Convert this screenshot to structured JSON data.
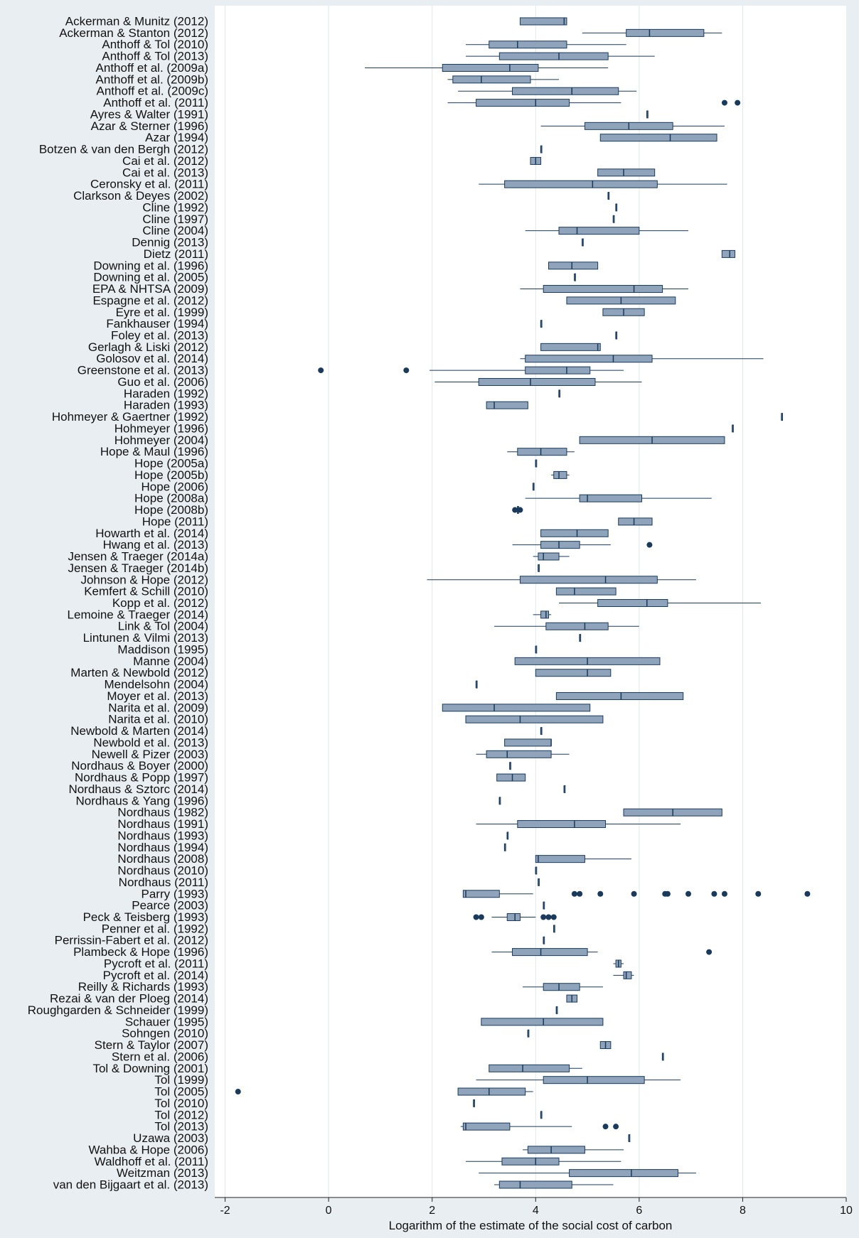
{
  "chart_data": {
    "type": "boxplot",
    "orientation": "horizontal",
    "xlabel": "Logarithm of the estimate of the social cost of carbon",
    "xlim": [
      -2.2,
      10
    ],
    "xticks": [
      -2,
      0,
      2,
      4,
      6,
      8,
      10
    ],
    "tick_labels": [
      "-2",
      "0",
      "2",
      "4",
      "6",
      "8",
      "10"
    ],
    "grid": "vertical",
    "colors": {
      "box_fill": "#8fa4bb",
      "line": "#1a3a5c",
      "outlier": "#1a3a5c",
      "plot_bg": "#ffffff",
      "outer_bg": "#e9eef2",
      "grid": "#dfe6ec"
    },
    "studies": [
      {
        "label": "Ackerman & Munitz (2012)",
        "wl": 3.7,
        "q1": 3.7,
        "med": 4.55,
        "q3": 4.6,
        "wh": 4.6,
        "out": []
      },
      {
        "label": "Ackerman & Stanton (2012)",
        "wl": 4.9,
        "q1": 5.75,
        "med": 6.2,
        "q3": 7.25,
        "wh": 7.6,
        "out": []
      },
      {
        "label": "Anthoff & Tol (2010)",
        "wl": 2.65,
        "q1": 3.1,
        "med": 3.65,
        "q3": 4.6,
        "wh": 5.75,
        "out": []
      },
      {
        "label": "Anthoff & Tol (2013)",
        "wl": 2.65,
        "q1": 3.3,
        "med": 4.45,
        "q3": 5.4,
        "wh": 6.3,
        "out": []
      },
      {
        "label": "Anthoff et al. (2009a)",
        "wl": 0.7,
        "q1": 2.2,
        "med": 3.5,
        "q3": 4.05,
        "wh": 5.4,
        "out": []
      },
      {
        "label": "Anthoff et al. (2009b)",
        "wl": 2.3,
        "q1": 2.4,
        "med": 2.95,
        "q3": 3.9,
        "wh": 4.45,
        "out": []
      },
      {
        "label": "Anthoff et al. (2009c)",
        "wl": 2.5,
        "q1": 3.55,
        "med": 4.7,
        "q3": 5.6,
        "wh": 5.95,
        "out": []
      },
      {
        "label": "Anthoff et al. (2011)",
        "wl": 2.3,
        "q1": 2.85,
        "med": 4.0,
        "q3": 4.65,
        "wh": 5.65,
        "out": [
          7.65,
          7.9
        ]
      },
      {
        "label": "Ayres & Walter (1991)",
        "wl": 6.15,
        "q1": 6.15,
        "med": 6.15,
        "q3": 6.15,
        "wh": 6.15,
        "out": []
      },
      {
        "label": "Azar & Sterner (1996)",
        "wl": 4.1,
        "q1": 4.95,
        "med": 5.8,
        "q3": 6.65,
        "wh": 7.65,
        "out": []
      },
      {
        "label": "Azar (1994)",
        "wl": 5.25,
        "q1": 5.25,
        "med": 6.6,
        "q3": 7.5,
        "wh": 7.5,
        "out": []
      },
      {
        "label": "Botzen & van den Bergh (2012)",
        "wl": 4.1,
        "q1": 4.1,
        "med": 4.1,
        "q3": 4.1,
        "wh": 4.1,
        "out": []
      },
      {
        "label": "Cai et al. (2012)",
        "wl": 3.9,
        "q1": 3.9,
        "med": 4.0,
        "q3": 4.1,
        "wh": 4.1,
        "out": []
      },
      {
        "label": "Cai et al. (2013)",
        "wl": 5.2,
        "q1": 5.2,
        "med": 5.7,
        "q3": 6.3,
        "wh": 6.3,
        "out": []
      },
      {
        "label": "Ceronsky et al. (2011)",
        "wl": 2.9,
        "q1": 3.4,
        "med": 5.1,
        "q3": 6.35,
        "wh": 7.7,
        "out": []
      },
      {
        "label": "Clarkson & Deyes (2002)",
        "wl": 5.4,
        "q1": 5.4,
        "med": 5.4,
        "q3": 5.4,
        "wh": 5.4,
        "out": []
      },
      {
        "label": "Cline (1992)",
        "wl": 5.55,
        "q1": 5.55,
        "med": 5.55,
        "q3": 5.55,
        "wh": 5.55,
        "out": []
      },
      {
        "label": "Cline (1997)",
        "wl": 5.5,
        "q1": 5.5,
        "med": 5.5,
        "q3": 5.5,
        "wh": 5.5,
        "out": []
      },
      {
        "label": "Cline (2004)",
        "wl": 3.8,
        "q1": 4.45,
        "med": 4.8,
        "q3": 6.0,
        "wh": 6.95,
        "out": []
      },
      {
        "label": "Dennig (2013)",
        "wl": 4.9,
        "q1": 4.9,
        "med": 4.9,
        "q3": 4.9,
        "wh": 4.9,
        "out": []
      },
      {
        "label": "Dietz (2011)",
        "wl": 7.6,
        "q1": 7.6,
        "med": 7.75,
        "q3": 7.85,
        "wh": 7.85,
        "out": []
      },
      {
        "label": "Downing et al. (1996)",
        "wl": 4.25,
        "q1": 4.25,
        "med": 4.7,
        "q3": 5.2,
        "wh": 5.2,
        "out": []
      },
      {
        "label": "Downing et al. (2005)",
        "wl": 4.75,
        "q1": 4.75,
        "med": 4.75,
        "q3": 4.75,
        "wh": 4.75,
        "out": []
      },
      {
        "label": "EPA & NHTSA (2009)",
        "wl": 3.7,
        "q1": 4.15,
        "med": 5.9,
        "q3": 6.45,
        "wh": 6.95,
        "out": []
      },
      {
        "label": "Espagne et al. (2012)",
        "wl": 4.6,
        "q1": 4.6,
        "med": 5.65,
        "q3": 6.7,
        "wh": 6.7,
        "out": []
      },
      {
        "label": "Eyre et al. (1999)",
        "wl": 5.3,
        "q1": 5.3,
        "med": 5.7,
        "q3": 6.1,
        "wh": 6.1,
        "out": []
      },
      {
        "label": "Fankhauser (1994)",
        "wl": 4.1,
        "q1": 4.1,
        "med": 4.1,
        "q3": 4.1,
        "wh": 4.1,
        "out": []
      },
      {
        "label": "Foley et al. (2013)",
        "wl": 5.55,
        "q1": 5.55,
        "med": 5.55,
        "q3": 5.55,
        "wh": 5.55,
        "out": []
      },
      {
        "label": "Gerlagh & Liski (2012)",
        "wl": 4.1,
        "q1": 4.1,
        "med": 5.2,
        "q3": 5.25,
        "wh": 5.25,
        "out": []
      },
      {
        "label": "Golosov et al. (2014)",
        "wl": 3.7,
        "q1": 3.8,
        "med": 5.5,
        "q3": 6.25,
        "wh": 8.4,
        "out": []
      },
      {
        "label": "Greenstone et al. (2013)",
        "wl": 1.95,
        "q1": 3.8,
        "med": 4.6,
        "q3": 5.05,
        "wh": 5.7,
        "out": [
          -0.15,
          1.5
        ]
      },
      {
        "label": "Guo et al. (2006)",
        "wl": 2.05,
        "q1": 2.9,
        "med": 3.9,
        "q3": 5.15,
        "wh": 6.05,
        "out": []
      },
      {
        "label": "Haraden (1992)",
        "wl": 4.45,
        "q1": 4.45,
        "med": 4.45,
        "q3": 4.45,
        "wh": 4.45,
        "out": []
      },
      {
        "label": "Haraden (1993)",
        "wl": 3.05,
        "q1": 3.05,
        "med": 3.2,
        "q3": 3.85,
        "wh": 3.85,
        "out": []
      },
      {
        "label": "Hohmeyer & Gaertner (1992)",
        "wl": 8.75,
        "q1": 8.75,
        "med": 8.75,
        "q3": 8.75,
        "wh": 8.75,
        "out": []
      },
      {
        "label": "Hohmeyer (1996)",
        "wl": 7.8,
        "q1": 7.8,
        "med": 7.8,
        "q3": 7.8,
        "wh": 7.8,
        "out": []
      },
      {
        "label": "Hohmeyer (2004)",
        "wl": 4.85,
        "q1": 4.85,
        "med": 6.25,
        "q3": 7.65,
        "wh": 7.65,
        "out": []
      },
      {
        "label": "Hope & Maul (1996)",
        "wl": 3.45,
        "q1": 3.65,
        "med": 4.1,
        "q3": 4.6,
        "wh": 4.75,
        "out": []
      },
      {
        "label": "Hope (2005a)",
        "wl": 4.0,
        "q1": 4.0,
        "med": 4.0,
        "q3": 4.0,
        "wh": 4.0,
        "out": []
      },
      {
        "label": "Hope (2005b)",
        "wl": 4.3,
        "q1": 4.35,
        "med": 4.45,
        "q3": 4.6,
        "wh": 4.65,
        "out": []
      },
      {
        "label": "Hope (2006)",
        "wl": 3.95,
        "q1": 3.95,
        "med": 3.95,
        "q3": 3.95,
        "wh": 3.95,
        "out": []
      },
      {
        "label": "Hope (2008a)",
        "wl": 3.8,
        "q1": 4.85,
        "med": 5.0,
        "q3": 6.05,
        "wh": 7.4,
        "out": []
      },
      {
        "label": "Hope (2008b)",
        "wl": 3.65,
        "q1": 3.65,
        "med": 3.65,
        "q3": 3.65,
        "wh": 3.65,
        "out": [
          3.6,
          3.7
        ]
      },
      {
        "label": "Hope (2011)",
        "wl": 5.6,
        "q1": 5.6,
        "med": 5.9,
        "q3": 6.25,
        "wh": 6.25,
        "out": []
      },
      {
        "label": "Howarth et al. (2014)",
        "wl": 4.1,
        "q1": 4.1,
        "med": 4.8,
        "q3": 5.4,
        "wh": 5.4,
        "out": []
      },
      {
        "label": "Hwang et al. (2013)",
        "wl": 3.55,
        "q1": 4.1,
        "med": 4.45,
        "q3": 4.85,
        "wh": 5.45,
        "out": [
          6.2
        ]
      },
      {
        "label": "Jensen & Traeger (2014a)",
        "wl": 3.95,
        "q1": 4.05,
        "med": 4.15,
        "q3": 4.45,
        "wh": 4.65,
        "out": []
      },
      {
        "label": "Jensen & Traeger (2014b)",
        "wl": 4.05,
        "q1": 4.05,
        "med": 4.05,
        "q3": 4.05,
        "wh": 4.05,
        "out": []
      },
      {
        "label": "Johnson & Hope (2012)",
        "wl": 1.9,
        "q1": 3.7,
        "med": 5.35,
        "q3": 6.35,
        "wh": 7.1,
        "out": []
      },
      {
        "label": "Kemfert & Schill (2010)",
        "wl": 4.4,
        "q1": 4.4,
        "med": 4.75,
        "q3": 5.55,
        "wh": 5.55,
        "out": []
      },
      {
        "label": "Kopp et al. (2012)",
        "wl": 4.45,
        "q1": 5.2,
        "med": 6.15,
        "q3": 6.55,
        "wh": 8.35,
        "out": []
      },
      {
        "label": "Lemoine & Traeger (2014)",
        "wl": 3.95,
        "q1": 4.1,
        "med": 4.2,
        "q3": 4.25,
        "wh": 4.3,
        "out": []
      },
      {
        "label": "Link & Tol (2004)",
        "wl": 3.2,
        "q1": 4.2,
        "med": 4.95,
        "q3": 5.4,
        "wh": 6.0,
        "out": []
      },
      {
        "label": "Lintunen & Vilmi (2013)",
        "wl": 4.85,
        "q1": 4.85,
        "med": 4.85,
        "q3": 4.85,
        "wh": 4.85,
        "out": []
      },
      {
        "label": "Maddison (1995)",
        "wl": 4.0,
        "q1": 4.0,
        "med": 4.0,
        "q3": 4.0,
        "wh": 4.0,
        "out": []
      },
      {
        "label": "Manne (2004)",
        "wl": 3.6,
        "q1": 3.6,
        "med": 5.0,
        "q3": 6.4,
        "wh": 6.4,
        "out": []
      },
      {
        "label": "Marten & Newbold (2012)",
        "wl": 4.0,
        "q1": 4.0,
        "med": 5.0,
        "q3": 5.45,
        "wh": 5.45,
        "out": []
      },
      {
        "label": "Mendelsohn (2004)",
        "wl": 2.85,
        "q1": 2.85,
        "med": 2.85,
        "q3": 2.85,
        "wh": 2.85,
        "out": []
      },
      {
        "label": "Moyer et al. (2013)",
        "wl": 4.4,
        "q1": 4.4,
        "med": 5.65,
        "q3": 6.85,
        "wh": 6.85,
        "out": []
      },
      {
        "label": "Narita et al. (2009)",
        "wl": 2.2,
        "q1": 2.2,
        "med": 3.2,
        "q3": 5.05,
        "wh": 5.05,
        "out": []
      },
      {
        "label": "Narita et al. (2010)",
        "wl": 2.65,
        "q1": 2.65,
        "med": 3.7,
        "q3": 5.3,
        "wh": 5.3,
        "out": []
      },
      {
        "label": "Newbold & Marten (2014)",
        "wl": 4.1,
        "q1": 4.1,
        "med": 4.1,
        "q3": 4.1,
        "wh": 4.1,
        "out": []
      },
      {
        "label": "Newbold et al. (2013)",
        "wl": 3.4,
        "q1": 3.4,
        "med": 4.3,
        "q3": 4.3,
        "wh": 4.3,
        "out": []
      },
      {
        "label": "Newell & Pizer (2003)",
        "wl": 2.85,
        "q1": 3.05,
        "med": 3.45,
        "q3": 4.3,
        "wh": 4.65,
        "out": []
      },
      {
        "label": "Nordhaus & Boyer (2000)",
        "wl": 3.5,
        "q1": 3.5,
        "med": 3.5,
        "q3": 3.5,
        "wh": 3.5,
        "out": []
      },
      {
        "label": "Nordhaus & Popp (1997)",
        "wl": 3.25,
        "q1": 3.25,
        "med": 3.55,
        "q3": 3.8,
        "wh": 3.8,
        "out": []
      },
      {
        "label": "Nordhaus & Sztorc (2014)",
        "wl": 4.55,
        "q1": 4.55,
        "med": 4.55,
        "q3": 4.55,
        "wh": 4.55,
        "out": []
      },
      {
        "label": "Nordhaus & Yang (1996)",
        "wl": 3.3,
        "q1": 3.3,
        "med": 3.3,
        "q3": 3.3,
        "wh": 3.3,
        "out": []
      },
      {
        "label": "Nordhaus (1982)",
        "wl": 5.7,
        "q1": 5.7,
        "med": 6.65,
        "q3": 7.6,
        "wh": 7.6,
        "out": []
      },
      {
        "label": "Nordhaus (1991)",
        "wl": 2.85,
        "q1": 3.65,
        "med": 4.75,
        "q3": 5.35,
        "wh": 6.8,
        "out": []
      },
      {
        "label": "Nordhaus (1993)",
        "wl": 3.45,
        "q1": 3.45,
        "med": 3.45,
        "q3": 3.45,
        "wh": 3.45,
        "out": []
      },
      {
        "label": "Nordhaus (1994)",
        "wl": 3.4,
        "q1": 3.4,
        "med": 3.4,
        "q3": 3.4,
        "wh": 3.4,
        "out": []
      },
      {
        "label": "Nordhaus (2008)",
        "wl": 4.0,
        "q1": 4.0,
        "med": 4.05,
        "q3": 4.95,
        "wh": 5.85,
        "out": []
      },
      {
        "label": "Nordhaus (2010)",
        "wl": 4.0,
        "q1": 4.0,
        "med": 4.0,
        "q3": 4.0,
        "wh": 4.0,
        "out": []
      },
      {
        "label": "Nordhaus (2011)",
        "wl": 4.05,
        "q1": 4.05,
        "med": 4.05,
        "q3": 4.05,
        "wh": 4.05,
        "out": []
      },
      {
        "label": "Parry (1993)",
        "wl": 2.6,
        "q1": 2.6,
        "med": 2.65,
        "q3": 3.3,
        "wh": 3.95,
        "out": [
          4.75,
          4.85,
          5.25,
          5.9,
          6.5,
          6.55,
          6.95,
          7.45,
          7.65,
          8.3,
          9.25
        ]
      },
      {
        "label": "Pearce (2003)",
        "wl": 4.15,
        "q1": 4.15,
        "med": 4.15,
        "q3": 4.15,
        "wh": 4.15,
        "out": []
      },
      {
        "label": "Peck & Teisberg (1993)",
        "wl": 3.15,
        "q1": 3.45,
        "med": 3.6,
        "q3": 3.7,
        "wh": 4.0,
        "out": [
          2.85,
          2.95,
          4.15,
          4.25,
          4.35
        ]
      },
      {
        "label": "Penner et al. (1992)",
        "wl": 4.35,
        "q1": 4.35,
        "med": 4.35,
        "q3": 4.35,
        "wh": 4.35,
        "out": []
      },
      {
        "label": "Perrissin-Fabert et al. (2012)",
        "wl": 4.15,
        "q1": 4.15,
        "med": 4.15,
        "q3": 4.15,
        "wh": 4.15,
        "out": []
      },
      {
        "label": "Plambeck & Hope (1996)",
        "wl": 3.15,
        "q1": 3.55,
        "med": 4.1,
        "q3": 5.0,
        "wh": 5.2,
        "out": [
          7.35
        ]
      },
      {
        "label": "Pycroft et al. (2011)",
        "wl": 5.5,
        "q1": 5.55,
        "med": 5.6,
        "q3": 5.65,
        "wh": 5.7,
        "out": []
      },
      {
        "label": "Pycroft et al. (2014)",
        "wl": 5.5,
        "q1": 5.7,
        "med": 5.75,
        "q3": 5.85,
        "wh": 5.9,
        "out": []
      },
      {
        "label": "Reilly & Richards (1993)",
        "wl": 3.75,
        "q1": 4.15,
        "med": 4.45,
        "q3": 4.85,
        "wh": 5.3,
        "out": []
      },
      {
        "label": "Rezai & van der Ploeg (2014)",
        "wl": 4.6,
        "q1": 4.6,
        "med": 4.7,
        "q3": 4.8,
        "wh": 4.8,
        "out": []
      },
      {
        "label": "Roughgarden & Schneider (1999)",
        "wl": 4.4,
        "q1": 4.4,
        "med": 4.4,
        "q3": 4.4,
        "wh": 4.4,
        "out": []
      },
      {
        "label": "Schauer (1995)",
        "wl": 2.95,
        "q1": 2.95,
        "med": 4.15,
        "q3": 5.3,
        "wh": 5.3,
        "out": []
      },
      {
        "label": "Sohngen (2010)",
        "wl": 3.85,
        "q1": 3.85,
        "med": 3.85,
        "q3": 3.85,
        "wh": 3.85,
        "out": []
      },
      {
        "label": "Stern & Taylor (2007)",
        "wl": 5.25,
        "q1": 5.25,
        "med": 5.35,
        "q3": 5.45,
        "wh": 5.45,
        "out": []
      },
      {
        "label": "Stern et al. (2006)",
        "wl": 6.45,
        "q1": 6.45,
        "med": 6.45,
        "q3": 6.45,
        "wh": 6.45,
        "out": []
      },
      {
        "label": "Tol & Downing (2001)",
        "wl": 3.1,
        "q1": 3.1,
        "med": 3.75,
        "q3": 4.65,
        "wh": 4.9,
        "out": []
      },
      {
        "label": "Tol (1999)",
        "wl": 2.85,
        "q1": 4.15,
        "med": 5.0,
        "q3": 6.1,
        "wh": 6.8,
        "out": []
      },
      {
        "label": "Tol (2005)",
        "wl": 2.5,
        "q1": 2.5,
        "med": 3.1,
        "q3": 3.8,
        "wh": 3.95,
        "out": [
          -1.75
        ]
      },
      {
        "label": "Tol (2010)",
        "wl": 2.8,
        "q1": 2.8,
        "med": 2.8,
        "q3": 2.8,
        "wh": 2.8,
        "out": []
      },
      {
        "label": "Tol (2012)",
        "wl": 4.1,
        "q1": 4.1,
        "med": 4.1,
        "q3": 4.1,
        "wh": 4.1,
        "out": []
      },
      {
        "label": "Tol (2013)",
        "wl": 2.55,
        "q1": 2.6,
        "med": 2.65,
        "q3": 3.5,
        "wh": 4.7,
        "out": [
          5.35,
          5.55
        ]
      },
      {
        "label": "Uzawa (2003)",
        "wl": 5.8,
        "q1": 5.8,
        "med": 5.8,
        "q3": 5.8,
        "wh": 5.8,
        "out": []
      },
      {
        "label": "Wahba & Hope (2006)",
        "wl": 3.75,
        "q1": 3.85,
        "med": 4.3,
        "q3": 4.95,
        "wh": 5.7,
        "out": []
      },
      {
        "label": "Waldhoff et al. (2011)",
        "wl": 2.65,
        "q1": 3.35,
        "med": 4.0,
        "q3": 4.45,
        "wh": 5.65,
        "out": []
      },
      {
        "label": "Weitzman (2013)",
        "wl": 2.9,
        "q1": 4.65,
        "med": 5.85,
        "q3": 6.75,
        "wh": 7.1,
        "out": []
      },
      {
        "label": "van den Bijgaart et al. (2013)",
        "wl": 3.2,
        "q1": 3.3,
        "med": 3.7,
        "q3": 4.7,
        "wh": 5.5,
        "out": []
      }
    ]
  }
}
